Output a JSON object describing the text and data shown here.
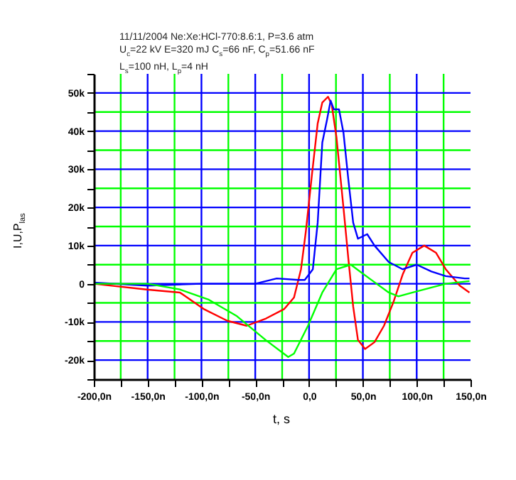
{
  "chart_data": {
    "type": "line",
    "title": "11/11/2004 Ne:Xe:HCl-770:8.6:1, P=3.6 atm\nU$_{c}$=22 kV E=320 mJ C$_{s}$=66 nF, C$_{p}$=51.66 nF\nL$_{s}$=100 nH, L$_{p}$=4 nH",
    "xlabel": "t, s",
    "ylabel": "I,U,P$_{las}$",
    "series": [
      {
        "color": "#ff0000",
        "x": [
          -200,
          -151,
          -120,
          -98,
          -76,
          -58,
          -40,
          -23,
          -14,
          -7.5,
          -3,
          2.6,
          8,
          12.3,
          17.6,
          21,
          25.5,
          32,
          36.6,
          41,
          45.4,
          52,
          60.8,
          69.6,
          78.4,
          87.2,
          96,
          107,
          118,
          127,
          140,
          149
        ],
        "values": [
          0,
          -1500,
          -2300,
          -6600,
          -9700,
          -11000,
          -9100,
          -6600,
          -3600,
          3800,
          13700,
          28400,
          42000,
          47500,
          49000,
          47000,
          38300,
          19800,
          6300,
          -6000,
          -14700,
          -17100,
          -15300,
          -11000,
          -4800,
          2600,
          8100,
          10000,
          8100,
          3800,
          -500,
          -2300
        ]
      },
      {
        "color": "#0000ff",
        "x": [
          -200,
          -150,
          -100,
          -50,
          -30,
          -10,
          -4,
          3.5,
          8,
          12.3,
          16.7,
          20,
          23,
          27.8,
          32,
          36.6,
          41,
          45.4,
          54,
          60.8,
          74,
          87,
          100,
          113.7,
          127,
          144.5,
          149
        ],
        "values": [
          300,
          -500,
          0,
          0,
          1400,
          1000,
          1000,
          3800,
          16000,
          37000,
          43000,
          48000,
          45700,
          45700,
          39500,
          27000,
          16000,
          11800,
          13000,
          10000,
          5700,
          3800,
          5000,
          3200,
          2000,
          1400,
          1400
        ]
      },
      {
        "color": "#00ff00",
        "x": [
          -200,
          -150,
          -120,
          -93,
          -67,
          -40.5,
          -19.4,
          -14,
          -1,
          12.3,
          25.5,
          38.8,
          56,
          74,
          83,
          100,
          127,
          149
        ],
        "values": [
          0,
          0,
          -1500,
          -4200,
          -8500,
          -14700,
          -19200,
          -18300,
          -11000,
          -2300,
          3800,
          5000,
          1400,
          -2300,
          -3300,
          -2000,
          0,
          700
        ]
      }
    ],
    "xlim": [
      -200,
      150
    ],
    "ylim": [
      -25000,
      55000
    ],
    "xticks": [
      {
        "value": -200,
        "label": "-200,0n"
      },
      {
        "value": -175,
        "label": null
      },
      {
        "value": -150,
        "label": "-150,0n"
      },
      {
        "value": -125,
        "label": null
      },
      {
        "value": -100,
        "label": "-100,0n"
      },
      {
        "value": -75,
        "label": null
      },
      {
        "value": -50,
        "label": "-50,0n"
      },
      {
        "value": -25,
        "label": null
      },
      {
        "value": 0,
        "label": "0,0"
      },
      {
        "value": 25,
        "label": null
      },
      {
        "value": 50,
        "label": "50,0n"
      },
      {
        "value": 75,
        "label": null
      },
      {
        "value": 100,
        "label": "100,0n"
      },
      {
        "value": 125,
        "label": null
      },
      {
        "value": 150,
        "label": "150,0n"
      }
    ],
    "yticks": [
      {
        "value": -25000,
        "label": null
      },
      {
        "value": -20000,
        "label": "-20k"
      },
      {
        "value": -15000,
        "label": null
      },
      {
        "value": -10000,
        "label": "-10k"
      },
      {
        "value": -5000,
        "label": null
      },
      {
        "value": 0,
        "label": "0"
      },
      {
        "value": 5000,
        "label": null
      },
      {
        "value": 10000,
        "label": "10k"
      },
      {
        "value": 15000,
        "label": null
      },
      {
        "value": 20000,
        "label": "20k"
      },
      {
        "value": 25000,
        "label": null
      },
      {
        "value": 30000,
        "label": "30k"
      },
      {
        "value": 35000,
        "label": null
      },
      {
        "value": 40000,
        "label": "40k"
      },
      {
        "value": 45000,
        "label": null
      },
      {
        "value": 50000,
        "label": "50k"
      },
      {
        "value": 55000,
        "label": null
      }
    ],
    "grid": true,
    "line_style": "solid"
  }
}
